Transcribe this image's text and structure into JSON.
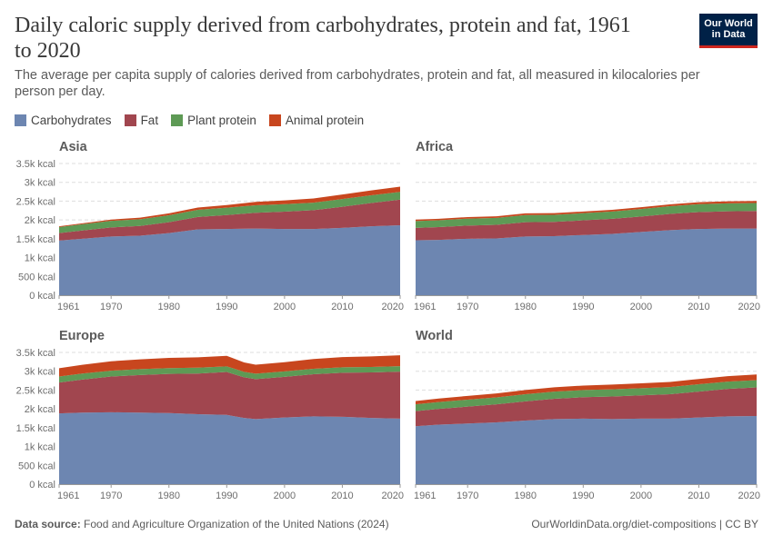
{
  "header": {
    "title": "Daily caloric supply derived from carbohydrates, protein and fat, 1961 to 2020",
    "subtitle": "The average per capita supply of calories derived from carbohydrates, protein and fat, all measured in kilocalories per person per day.",
    "logo_line1": "Our World",
    "logo_line2": "in Data"
  },
  "footer": {
    "source_label": "Data source:",
    "source_text": "Food and Agriculture Organization of the United Nations (2024)",
    "url": "OurWorldinData.org/diet-compositions | CC BY"
  },
  "colors": {
    "carbohydrates": "#6d86b1",
    "fat": "#a1464f",
    "plant_protein": "#5e9a55",
    "animal_protein": "#c8461e",
    "grid": "#dddddd",
    "axis": "#999999"
  },
  "chart_data": [
    {
      "type": "area",
      "stacked": true,
      "title": "Asia",
      "xlim": [
        1961,
        2020
      ],
      "ylim": [
        0,
        3500
      ],
      "x_ticks": [
        "1961",
        "1970",
        "1980",
        "1990",
        "2000",
        "2010",
        "2020"
      ],
      "y_ticks": [
        "0 kcal",
        "500 kcal",
        "1k kcal",
        "1.5k kcal",
        "2k kcal",
        "2.5k kcal",
        "3k kcal",
        "3.5k kcal"
      ],
      "x": [
        1961,
        1965,
        1970,
        1975,
        1980,
        1985,
        1990,
        1995,
        2000,
        2005,
        2010,
        2015,
        2020
      ],
      "series": [
        {
          "name": "Carbohydrates",
          "values": [
            1450,
            1500,
            1560,
            1580,
            1650,
            1750,
            1760,
            1770,
            1760,
            1760,
            1790,
            1830,
            1860
          ]
        },
        {
          "name": "Fat",
          "values": [
            200,
            220,
            240,
            260,
            290,
            330,
            370,
            420,
            460,
            500,
            560,
            620,
            680
          ]
        },
        {
          "name": "Plant protein",
          "values": [
            160,
            165,
            175,
            180,
            185,
            190,
            195,
            200,
            200,
            200,
            205,
            205,
            205
          ]
        },
        {
          "name": "Animal protein",
          "values": [
            20,
            25,
            35,
            40,
            50,
            60,
            70,
            90,
            100,
            110,
            120,
            130,
            140
          ]
        }
      ]
    },
    {
      "type": "area",
      "stacked": true,
      "title": "Africa",
      "xlim": [
        1961,
        2020
      ],
      "ylim": [
        0,
        3500
      ],
      "x_ticks": [
        "1961",
        "1970",
        "1980",
        "1990",
        "2000",
        "2010",
        "2020"
      ],
      "y_ticks": [
        "0 kcal",
        "500 kcal",
        "1k kcal",
        "1.5k kcal",
        "2k kcal",
        "2.5k kcal",
        "3k kcal",
        "3.5k kcal"
      ],
      "x": [
        1961,
        1965,
        1970,
        1975,
        1980,
        1985,
        1990,
        1995,
        2000,
        2005,
        2010,
        2015,
        2020
      ],
      "series": [
        {
          "name": "Carbohydrates",
          "values": [
            1460,
            1470,
            1500,
            1510,
            1560,
            1570,
            1600,
            1630,
            1680,
            1730,
            1760,
            1770,
            1770
          ]
        },
        {
          "name": "Fat",
          "values": [
            330,
            340,
            350,
            360,
            380,
            380,
            390,
            400,
            410,
            430,
            450,
            460,
            470
          ]
        },
        {
          "name": "Plant protein",
          "values": [
            180,
            180,
            185,
            185,
            190,
            185,
            190,
            195,
            200,
            205,
            210,
            210,
            210
          ]
        },
        {
          "name": "Animal protein",
          "values": [
            40,
            40,
            42,
            42,
            45,
            45,
            45,
            45,
            48,
            50,
            52,
            54,
            55
          ]
        }
      ]
    },
    {
      "type": "area",
      "stacked": true,
      "title": "Europe",
      "xlim": [
        1961,
        2020
      ],
      "ylim": [
        0,
        3500
      ],
      "x_ticks": [
        "1961",
        "1970",
        "1980",
        "1990",
        "2000",
        "2010",
        "2020"
      ],
      "y_ticks": [
        "0 kcal",
        "500 kcal",
        "1k kcal",
        "1.5k kcal",
        "2k kcal",
        "2.5k kcal",
        "3k kcal",
        "3.5k kcal"
      ],
      "x": [
        1961,
        1965,
        1970,
        1975,
        1980,
        1985,
        1990,
        1993,
        1995,
        2000,
        2005,
        2010,
        2015,
        2020
      ],
      "series": [
        {
          "name": "Carbohydrates",
          "values": [
            1880,
            1900,
            1910,
            1900,
            1890,
            1860,
            1840,
            1760,
            1730,
            1770,
            1800,
            1790,
            1760,
            1740
          ]
        },
        {
          "name": "Fat",
          "values": [
            820,
            880,
            950,
            1000,
            1040,
            1080,
            1140,
            1080,
            1060,
            1080,
            1120,
            1170,
            1210,
            1250
          ]
        },
        {
          "name": "Plant protein",
          "values": [
            160,
            160,
            155,
            155,
            155,
            155,
            150,
            145,
            145,
            145,
            145,
            145,
            145,
            145
          ]
        },
        {
          "name": "Animal protein",
          "values": [
            220,
            230,
            250,
            260,
            270,
            275,
            280,
            250,
            240,
            245,
            260,
            270,
            280,
            290
          ]
        }
      ]
    },
    {
      "type": "area",
      "stacked": true,
      "title": "World",
      "xlim": [
        1961,
        2020
      ],
      "ylim": [
        0,
        3500
      ],
      "x_ticks": [
        "1961",
        "1970",
        "1980",
        "1990",
        "2000",
        "2010",
        "2020"
      ],
      "y_ticks": [
        "0 kcal",
        "500 kcal",
        "1k kcal",
        "1.5k kcal",
        "2k kcal",
        "2.5k kcal",
        "3k kcal",
        "3.5k kcal"
      ],
      "x": [
        1961,
        1965,
        1970,
        1975,
        1980,
        1985,
        1990,
        1995,
        2000,
        2005,
        2010,
        2015,
        2020
      ],
      "series": [
        {
          "name": "Carbohydrates",
          "values": [
            1540,
            1580,
            1610,
            1640,
            1690,
            1730,
            1740,
            1730,
            1740,
            1740,
            1770,
            1800,
            1810
          ]
        },
        {
          "name": "Fat",
          "values": [
            400,
            420,
            450,
            480,
            510,
            540,
            570,
            600,
            620,
            650,
            690,
            730,
            760
          ]
        },
        {
          "name": "Plant protein",
          "values": [
            180,
            180,
            185,
            185,
            190,
            190,
            190,
            190,
            190,
            190,
            195,
            195,
            195
          ]
        },
        {
          "name": "Animal protein",
          "values": [
            90,
            95,
            100,
            105,
            110,
            115,
            120,
            125,
            130,
            135,
            140,
            145,
            150
          ]
        }
      ]
    }
  ]
}
